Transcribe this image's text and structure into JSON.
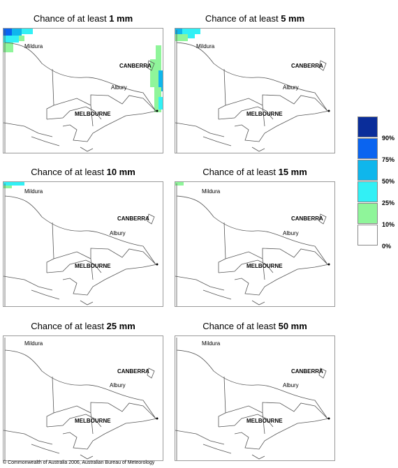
{
  "panels": [
    {
      "title_prefix": "Chance of at least ",
      "amount": "1 mm"
    },
    {
      "title_prefix": "Chance of at least ",
      "amount": "5 mm"
    },
    {
      "title_prefix": "Chance of at least ",
      "amount": "10 mm"
    },
    {
      "title_prefix": "Chance of at least ",
      "amount": "15 mm"
    },
    {
      "title_prefix": "Chance of at least ",
      "amount": "25 mm"
    },
    {
      "title_prefix": "Chance of at least ",
      "amount": "50 mm"
    }
  ],
  "cities": {
    "mildura": "Mildura",
    "canberra": "CANBERRA",
    "albury": "Albury",
    "melbourne": "MELBOURNE"
  },
  "legend": {
    "labels": [
      "90%",
      "75%",
      "50%",
      "25%",
      "10%",
      "0%"
    ],
    "colors": [
      "#0a2d9a",
      "#0a64f0",
      "#0fb6ec",
      "#32f0f5",
      "#8ff59a",
      "#ffffff"
    ]
  },
  "copyright": "© Commonwealth of Australia 2006, Australian Bureau of Meteorology"
}
